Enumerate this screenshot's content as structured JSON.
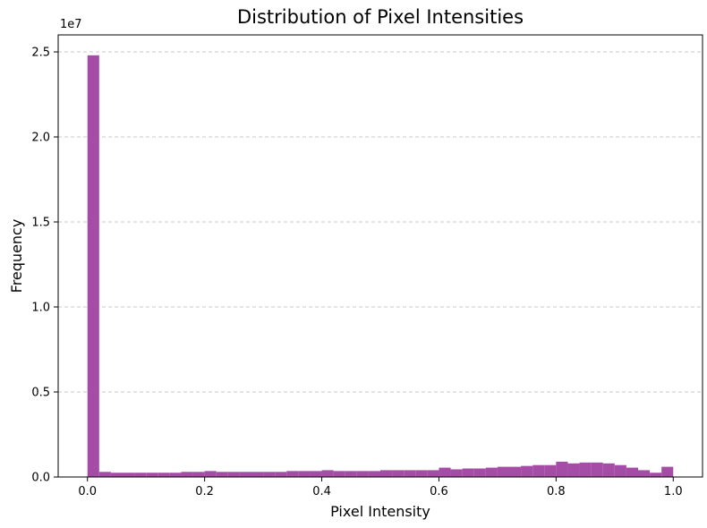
{
  "chart_data": {
    "type": "bar",
    "title": "Distribution of Pixel Intensities",
    "xlabel": "Pixel Intensity",
    "ylabel": "Frequency",
    "y_scale_label": "1e7",
    "xlim": [
      -0.05,
      1.05
    ],
    "ylim": [
      0,
      2.6
    ],
    "x_ticks": [
      {
        "value": 0.0,
        "label": "0.0"
      },
      {
        "value": 0.2,
        "label": "0.2"
      },
      {
        "value": 0.4,
        "label": "0.4"
      },
      {
        "value": 0.6,
        "label": "0.6"
      },
      {
        "value": 0.8,
        "label": "0.8"
      },
      {
        "value": 1.0,
        "label": "1.0"
      }
    ],
    "y_ticks": [
      {
        "value": 0.0,
        "label": "0.0"
      },
      {
        "value": 0.5,
        "label": "0.5"
      },
      {
        "value": 1.0,
        "label": "1.0"
      },
      {
        "value": 1.5,
        "label": "1.5"
      },
      {
        "value": 2.0,
        "label": "2.0"
      },
      {
        "value": 2.5,
        "label": "2.5"
      }
    ],
    "grid": "y-dashed",
    "bar_color": "#a54ca6",
    "bin_width": 0.02,
    "bins_start": [
      0.0,
      0.02,
      0.04,
      0.06,
      0.08,
      0.1,
      0.12,
      0.14,
      0.16,
      0.18,
      0.2,
      0.22,
      0.24,
      0.26,
      0.28,
      0.3,
      0.32,
      0.34,
      0.36,
      0.38,
      0.4,
      0.42,
      0.44,
      0.46,
      0.48,
      0.5,
      0.52,
      0.54,
      0.56,
      0.58,
      0.6,
      0.62,
      0.64,
      0.66,
      0.68,
      0.7,
      0.72,
      0.74,
      0.76,
      0.78,
      0.8,
      0.82,
      0.84,
      0.86,
      0.88,
      0.9,
      0.92,
      0.94,
      0.96,
      0.98
    ],
    "values": [
      2.48,
      0.03,
      0.025,
      0.025,
      0.025,
      0.025,
      0.025,
      0.025,
      0.03,
      0.03,
      0.035,
      0.03,
      0.03,
      0.03,
      0.03,
      0.03,
      0.03,
      0.035,
      0.035,
      0.035,
      0.04,
      0.035,
      0.035,
      0.035,
      0.035,
      0.04,
      0.04,
      0.04,
      0.04,
      0.04,
      0.055,
      0.045,
      0.05,
      0.05,
      0.055,
      0.06,
      0.06,
      0.065,
      0.07,
      0.07,
      0.09,
      0.08,
      0.085,
      0.085,
      0.08,
      0.07,
      0.055,
      0.04,
      0.025,
      0.06
    ]
  }
}
